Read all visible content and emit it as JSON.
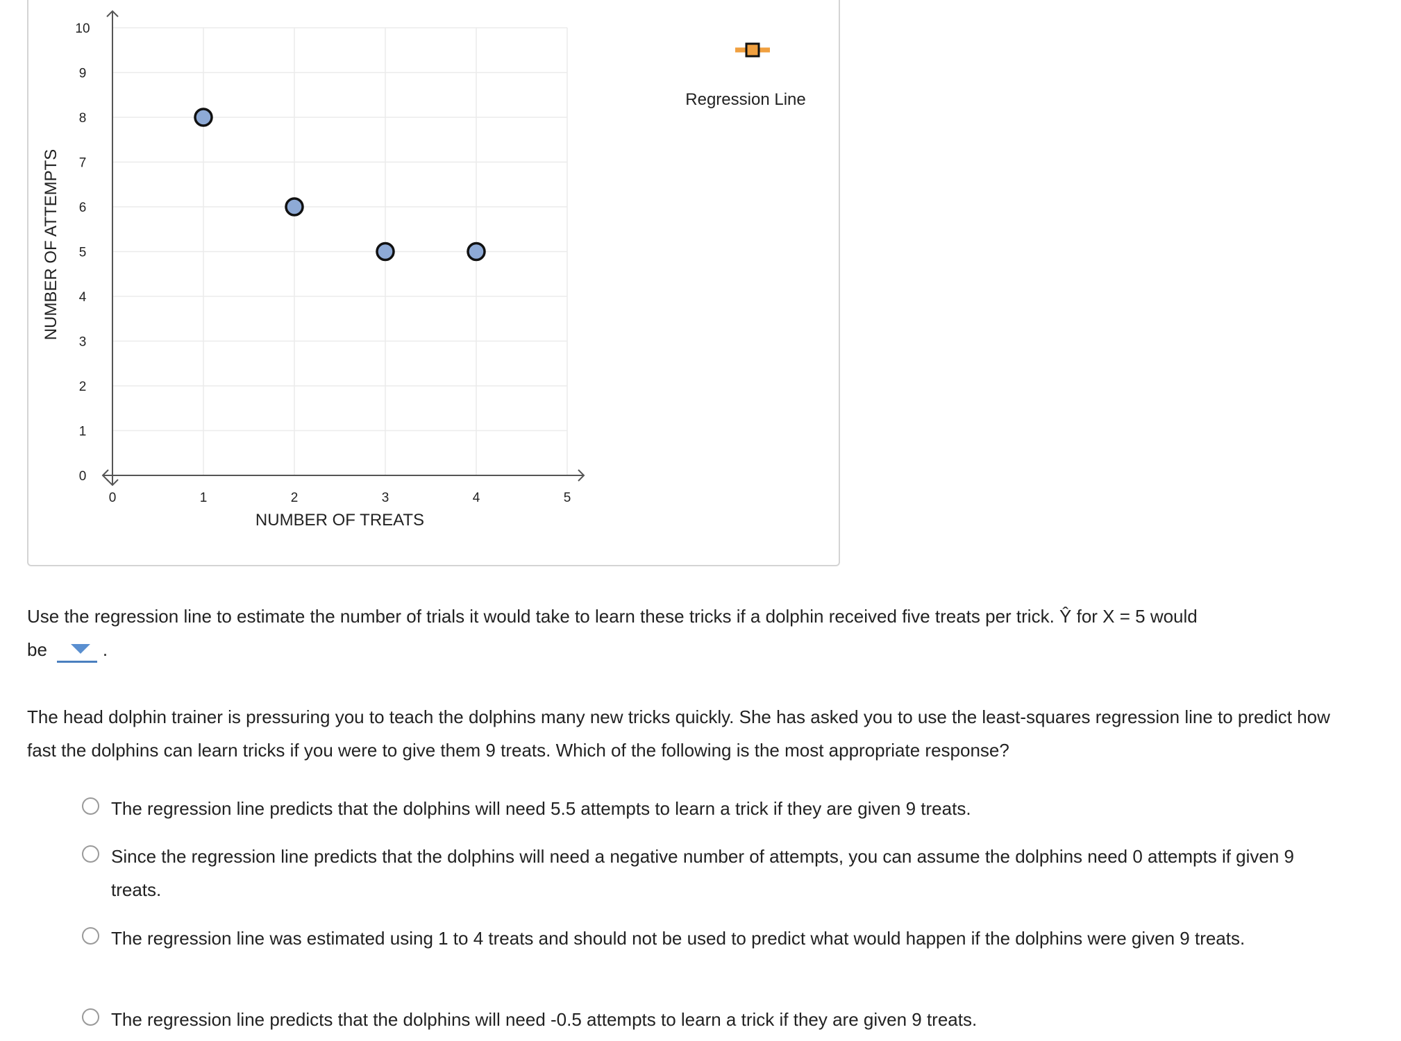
{
  "chart_data": {
    "type": "scatter",
    "xlabel": "NUMBER OF TREATS",
    "ylabel": "NUMBER OF ATTEMPTS",
    "xlim": [
      0,
      5
    ],
    "ylim": [
      0,
      10
    ],
    "x_ticks": [
      "0",
      "1",
      "2",
      "3",
      "4",
      "5"
    ],
    "y_ticks": [
      "0",
      "1",
      "2",
      "3",
      "4",
      "5",
      "6",
      "7",
      "8",
      "9",
      "10"
    ],
    "points": [
      {
        "x": 1,
        "y": 8
      },
      {
        "x": 2,
        "y": 6
      },
      {
        "x": 3,
        "y": 5
      },
      {
        "x": 4,
        "y": 5
      }
    ],
    "grid": true,
    "point_color": "#8eaad6"
  },
  "tool": {
    "label": "Regression Line",
    "icon": "regression-line-tool-icon",
    "color": "#f0a040"
  },
  "question1": {
    "text_before": "Use the regression line to estimate the number of trials it would take to learn these tricks if a dolphin received five treats per trick. Ŷ for X = 5 would",
    "text_be": "be",
    "dropdown_value": "",
    "period": "."
  },
  "question2": {
    "prompt": "The head dolphin trainer is pressuring you to teach the dolphins many new tricks quickly. She has asked you to use the least-squares regression line to predict how fast the dolphins can learn tricks if you were to give them 9 treats. Which of the following is the most appropriate response?",
    "options": [
      "The regression line predicts that the dolphins will need 5.5 attempts to learn a trick if they are given 9 treats.",
      "Since the regression line predicts that the dolphins will need a negative number of attempts, you can assume the dolphins need 0 attempts if given 9 treats.",
      "The regression line was estimated using 1 to 4 treats and should not be used to predict what would happen if the dolphins were given 9 treats.",
      "The regression line predicts that the dolphins will need -0.5 attempts to learn a trick if they are given 9 treats."
    ]
  },
  "colors": {
    "accent": "#4a7fbf",
    "panel_border": "#d4d4d4",
    "grid": "#ebebeb"
  }
}
